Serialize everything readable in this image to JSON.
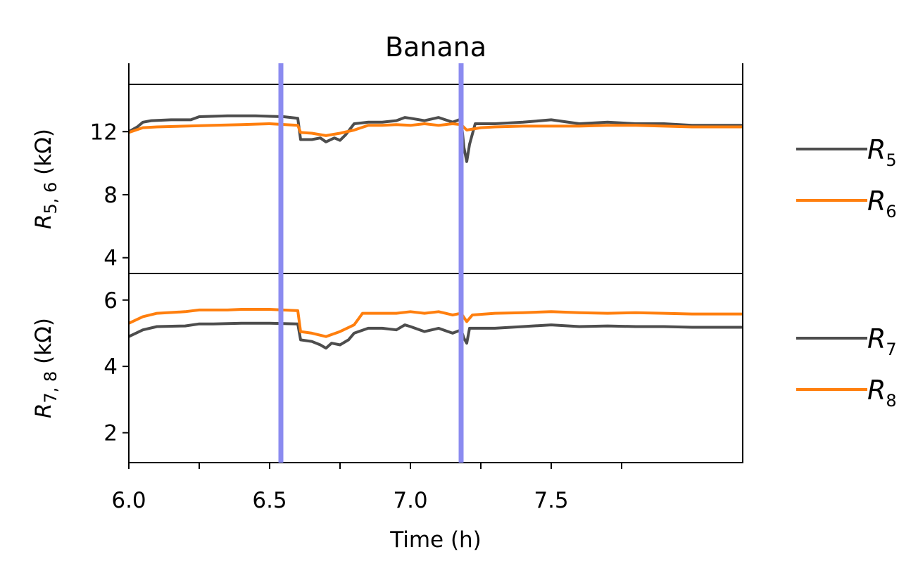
{
  "chart_data": {
    "type": "line",
    "title": "Banana",
    "xlabel": "Time (h)",
    "xlim": [
      6.0,
      8.18
    ],
    "x_ticks": [
      6.0,
      6.25,
      6.5,
      6.75,
      7.0,
      7.25,
      7.5,
      7.75
    ],
    "x_tick_labels": [
      "6.0",
      "6.5",
      "7.0",
      "7.5"
    ],
    "x_tick_label_values": [
      6.0,
      6.5,
      7.0,
      7.5
    ],
    "markers": {
      "color": "#8b8bf0",
      "x": [
        6.54,
        7.18
      ]
    },
    "panels": [
      {
        "ylabel_main": "R",
        "ylabel_sub": "5, 6",
        "ylabel_unit": " (kΩ)",
        "ylim": [
          3.0,
          15.0
        ],
        "y_ticks": [
          4,
          8,
          12
        ],
        "y_tick_labels": [
          "4",
          "8",
          "12"
        ],
        "series": [
          {
            "name": "R",
            "name_sub": "5",
            "color": "#4d4d4d",
            "points": [
              [
                6.0,
                12.0
              ],
              [
                6.03,
                12.3
              ],
              [
                6.05,
                12.6
              ],
              [
                6.08,
                12.7
              ],
              [
                6.15,
                12.75
              ],
              [
                6.22,
                12.75
              ],
              [
                6.25,
                12.95
              ],
              [
                6.35,
                13.0
              ],
              [
                6.45,
                13.0
              ],
              [
                6.55,
                12.95
              ],
              [
                6.6,
                12.85
              ],
              [
                6.61,
                11.5
              ],
              [
                6.65,
                11.5
              ],
              [
                6.68,
                11.6
              ],
              [
                6.7,
                11.35
              ],
              [
                6.73,
                11.6
              ],
              [
                6.75,
                11.45
              ],
              [
                6.77,
                11.8
              ],
              [
                6.8,
                12.5
              ],
              [
                6.85,
                12.6
              ],
              [
                6.9,
                12.6
              ],
              [
                6.95,
                12.7
              ],
              [
                6.98,
                12.9
              ],
              [
                7.0,
                12.85
              ],
              [
                7.05,
                12.7
              ],
              [
                7.1,
                12.9
              ],
              [
                7.15,
                12.6
              ],
              [
                7.18,
                12.8
              ],
              [
                7.19,
                11.0
              ],
              [
                7.2,
                10.1
              ],
              [
                7.21,
                11.2
              ],
              [
                7.23,
                12.5
              ],
              [
                7.3,
                12.5
              ],
              [
                7.4,
                12.6
              ],
              [
                7.5,
                12.75
              ],
              [
                7.6,
                12.5
              ],
              [
                7.7,
                12.6
              ],
              [
                7.8,
                12.5
              ],
              [
                7.9,
                12.5
              ],
              [
                8.0,
                12.4
              ],
              [
                8.18,
                12.4
              ]
            ]
          },
          {
            "name": "R",
            "name_sub": "6",
            "color": "#ff7f0e",
            "points": [
              [
                6.0,
                11.95
              ],
              [
                6.05,
                12.25
              ],
              [
                6.1,
                12.3
              ],
              [
                6.2,
                12.35
              ],
              [
                6.3,
                12.4
              ],
              [
                6.4,
                12.45
              ],
              [
                6.5,
                12.5
              ],
              [
                6.6,
                12.4
              ],
              [
                6.61,
                11.95
              ],
              [
                6.65,
                11.9
              ],
              [
                6.7,
                11.75
              ],
              [
                6.75,
                11.9
              ],
              [
                6.8,
                12.1
              ],
              [
                6.85,
                12.4
              ],
              [
                6.9,
                12.4
              ],
              [
                6.95,
                12.45
              ],
              [
                7.0,
                12.4
              ],
              [
                7.05,
                12.5
              ],
              [
                7.1,
                12.4
              ],
              [
                7.15,
                12.5
              ],
              [
                7.18,
                12.45
              ],
              [
                7.2,
                12.1
              ],
              [
                7.25,
                12.25
              ],
              [
                7.3,
                12.3
              ],
              [
                7.4,
                12.35
              ],
              [
                7.5,
                12.35
              ],
              [
                7.6,
                12.35
              ],
              [
                7.7,
                12.4
              ],
              [
                7.8,
                12.4
              ],
              [
                7.9,
                12.35
              ],
              [
                8.0,
                12.3
              ],
              [
                8.18,
                12.3
              ]
            ]
          }
        ]
      },
      {
        "ylabel_main": "R",
        "ylabel_sub": "7, 8",
        "ylabel_unit": " (kΩ)",
        "ylim": [
          1.1,
          6.8
        ],
        "y_ticks": [
          2,
          4,
          6
        ],
        "y_tick_labels": [
          "2",
          "4",
          "6"
        ],
        "series": [
          {
            "name": "R",
            "name_sub": "7",
            "color": "#4d4d4d",
            "points": [
              [
                6.0,
                4.9
              ],
              [
                6.05,
                5.1
              ],
              [
                6.1,
                5.2
              ],
              [
                6.2,
                5.22
              ],
              [
                6.25,
                5.28
              ],
              [
                6.3,
                5.28
              ],
              [
                6.4,
                5.3
              ],
              [
                6.5,
                5.3
              ],
              [
                6.6,
                5.28
              ],
              [
                6.61,
                4.8
              ],
              [
                6.65,
                4.75
              ],
              [
                6.68,
                4.65
              ],
              [
                6.7,
                4.55
              ],
              [
                6.72,
                4.7
              ],
              [
                6.75,
                4.65
              ],
              [
                6.78,
                4.8
              ],
              [
                6.8,
                5.0
              ],
              [
                6.85,
                5.15
              ],
              [
                6.9,
                5.15
              ],
              [
                6.95,
                5.1
              ],
              [
                6.98,
                5.25
              ],
              [
                7.0,
                5.2
              ],
              [
                7.05,
                5.05
              ],
              [
                7.1,
                5.15
              ],
              [
                7.15,
                5.0
              ],
              [
                7.18,
                5.1
              ],
              [
                7.19,
                4.85
              ],
              [
                7.2,
                4.7
              ],
              [
                7.21,
                5.15
              ],
              [
                7.3,
                5.15
              ],
              [
                7.4,
                5.2
              ],
              [
                7.5,
                5.25
              ],
              [
                7.6,
                5.2
              ],
              [
                7.7,
                5.22
              ],
              [
                7.8,
                5.2
              ],
              [
                7.9,
                5.2
              ],
              [
                8.0,
                5.18
              ],
              [
                8.18,
                5.18
              ]
            ]
          },
          {
            "name": "R",
            "name_sub": "8",
            "color": "#ff7f0e",
            "points": [
              [
                6.0,
                5.3
              ],
              [
                6.05,
                5.5
              ],
              [
                6.1,
                5.6
              ],
              [
                6.2,
                5.65
              ],
              [
                6.25,
                5.7
              ],
              [
                6.35,
                5.7
              ],
              [
                6.4,
                5.72
              ],
              [
                6.5,
                5.72
              ],
              [
                6.6,
                5.68
              ],
              [
                6.61,
                5.05
              ],
              [
                6.65,
                5.0
              ],
              [
                6.7,
                4.9
              ],
              [
                6.75,
                5.05
              ],
              [
                6.8,
                5.25
              ],
              [
                6.83,
                5.6
              ],
              [
                6.9,
                5.6
              ],
              [
                6.95,
                5.6
              ],
              [
                7.0,
                5.65
              ],
              [
                7.05,
                5.6
              ],
              [
                7.1,
                5.65
              ],
              [
                7.15,
                5.55
              ],
              [
                7.18,
                5.6
              ],
              [
                7.2,
                5.35
              ],
              [
                7.22,
                5.55
              ],
              [
                7.3,
                5.6
              ],
              [
                7.4,
                5.62
              ],
              [
                7.5,
                5.65
              ],
              [
                7.6,
                5.62
              ],
              [
                7.7,
                5.6
              ],
              [
                7.8,
                5.62
              ],
              [
                7.9,
                5.6
              ],
              [
                8.0,
                5.58
              ],
              [
                8.18,
                5.58
              ]
            ]
          }
        ]
      }
    ],
    "legend_placement": "right of each panel",
    "grid": false
  }
}
